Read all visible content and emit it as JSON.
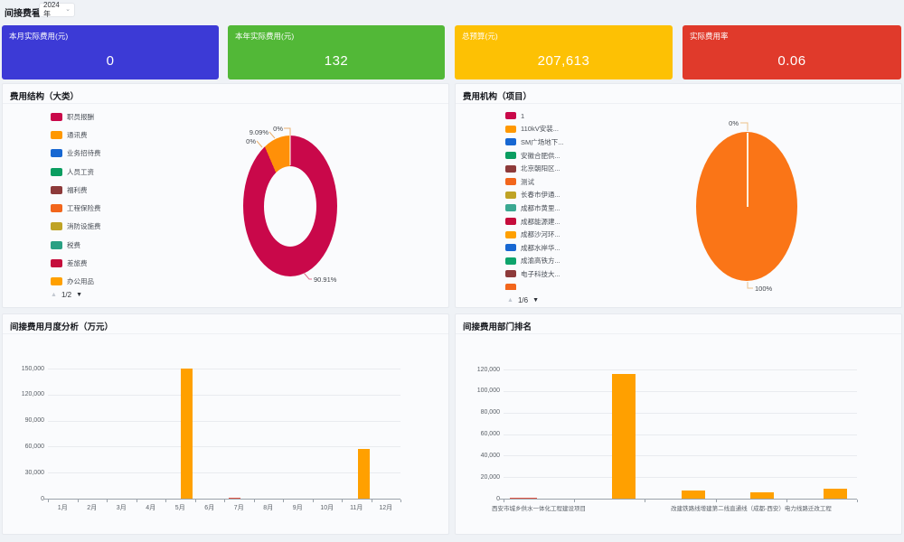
{
  "header": {
    "title": "间接费看板",
    "year": "2024年",
    "chevron": "⌄"
  },
  "kpis": [
    {
      "label": "本月实际费用(元)",
      "value": "0",
      "color": "#3c3ad6"
    },
    {
      "label": "本年实际费用(元)",
      "value": "132",
      "color": "#52b837"
    },
    {
      "label": "总预算(元)",
      "value": "207,613",
      "color": "#fdc104"
    },
    {
      "label": "实际费用率",
      "value": "0.06",
      "color": "#e03a2b"
    }
  ],
  "panels": {
    "cost_structure": {
      "title": "费用结构（大类）",
      "legend": [
        {
          "label": "职员报酬",
          "color": "#c9084a"
        },
        {
          "label": "通讯费",
          "color": "#ff9800"
        },
        {
          "label": "业务招待费",
          "color": "#1767d2"
        },
        {
          "label": "人员工资",
          "color": "#0a9d61"
        },
        {
          "label": "福利费",
          "color": "#8d3a3a"
        },
        {
          "label": "工程保险费",
          "color": "#f2661c"
        },
        {
          "label": "消防设施费",
          "color": "#bfa325"
        },
        {
          "label": "税费",
          "color": "#29a083"
        },
        {
          "label": "差旅费",
          "color": "#c50d3c"
        },
        {
          "label": "办公用品",
          "color": "#ffa000"
        }
      ],
      "pagination": "1/2",
      "pager_up": "▲",
      "pager_down": "▼",
      "chart_data": {
        "type": "pie",
        "slices": [
          {
            "name": "职员报酬",
            "pct": 90.91,
            "color": "#c9084a"
          },
          {
            "name": "通讯费",
            "pct": 9.09,
            "color": "#ff9008"
          },
          {
            "pct": 0
          },
          {
            "pct": 0
          }
        ],
        "labels": [
          "0%",
          "9.09%",
          "0%",
          "90.91%"
        ]
      }
    },
    "cost_org": {
      "title": "费用机构（项目）",
      "legend": [
        {
          "label": "1",
          "color": "#c9084a"
        },
        {
          "label": "110kV安装...",
          "color": "#ff9800"
        },
        {
          "label": "SM广场地下...",
          "color": "#1767d2"
        },
        {
          "label": "安徽合肥供...",
          "color": "#0a9d61"
        },
        {
          "label": "北京朝阳区...",
          "color": "#8d3a3a"
        },
        {
          "label": "测试",
          "color": "#f2661c"
        },
        {
          "label": "长春市伊通...",
          "color": "#bfa325"
        },
        {
          "label": "成都市黄里...",
          "color": "#3aa891"
        },
        {
          "label": "成都能源建...",
          "color": "#c50d3c"
        },
        {
          "label": "成都沙河环...",
          "color": "#ffa000"
        },
        {
          "label": "成都水岸华...",
          "color": "#1767d2"
        },
        {
          "label": "成渝高铁方...",
          "color": "#0ea46c"
        },
        {
          "label": "电子科技大...",
          "color": "#8d3a3a"
        },
        {
          "label": "",
          "color": "#f2661c",
          "clipped": true
        }
      ],
      "pagination": "1/6",
      "pager_up": "▲",
      "pager_down": "▼",
      "chart_data": {
        "type": "pie",
        "slices": [
          {
            "name": "测试",
            "pct": 100,
            "color": "#fa7517"
          },
          {
            "pct": 0
          }
        ],
        "labels": [
          "0%",
          "100%"
        ]
      }
    },
    "monthly": {
      "title": "间接费用月度分析（万元）",
      "chart_data": {
        "type": "bar",
        "categories": [
          "1月",
          "2月",
          "3月",
          "4月",
          "5月",
          "6月",
          "7月",
          "8月",
          "9月",
          "10月",
          "11月",
          "12月"
        ],
        "values": [
          0,
          0,
          0,
          0,
          149500,
          0,
          1300,
          0,
          0,
          0,
          57200,
          0
        ],
        "colors": [
          "",
          "",
          "",
          "",
          "#ffa000",
          "",
          "#e25545",
          "",
          "",
          "",
          "#ffa000",
          ""
        ],
        "default_color": "#ffa000",
        "y_ticks": [
          "0",
          "30,000",
          "60,000",
          "90,000",
          "120,000",
          "150,000"
        ],
        "ylim": [
          0,
          150000
        ]
      }
    },
    "ranking": {
      "title": "间接费用部门排名",
      "chart_data": {
        "type": "bar",
        "categories": [
          "西安市城乡供水一体化工程建设项目",
          "",
          "",
          "改建铁路线增建第二线直通线（成都-西安）电力线路迁改工程",
          ""
        ],
        "values": [
          300,
          116000,
          7200,
          5500,
          9200
        ],
        "colors": [
          "#e25545",
          "#ffa000",
          "#ffa000",
          "#ffa000",
          "#ffa000"
        ],
        "default_color": "#ffa000",
        "y_ticks": [
          "0",
          "20,000",
          "40,000",
          "60,000",
          "80,000",
          "100,000",
          "120,000"
        ],
        "ylim": [
          0,
          120000
        ]
      }
    }
  }
}
